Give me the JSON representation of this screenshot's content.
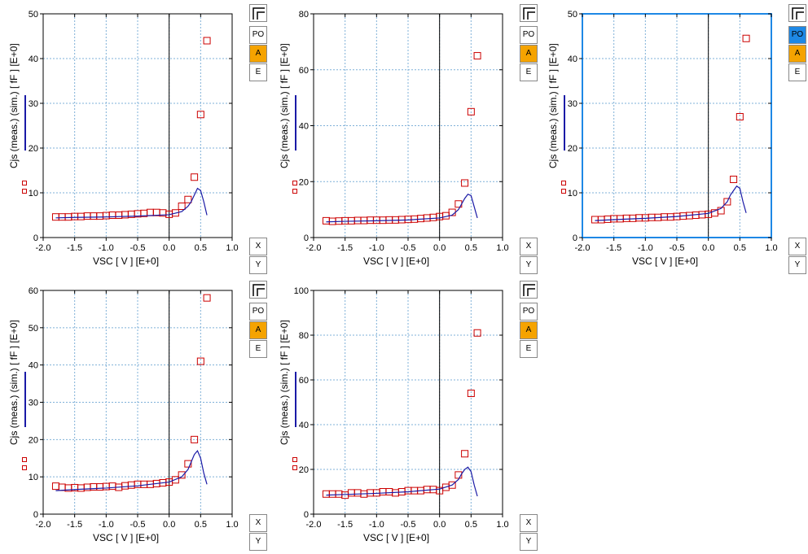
{
  "controls": {
    "scale_buttons": [
      "PO",
      "A",
      "E"
    ],
    "axis_buttons": [
      "X",
      "Y"
    ]
  },
  "colors": {
    "meas": "#cc0000",
    "sim": "#1a1aa6",
    "grid": "#7fb0d8",
    "selected_orange": "#f5a300",
    "selected_blue": "#1e88e5"
  },
  "chart_data": [
    {
      "type": "scatter",
      "ylabel": "Cjs (meas.) (sim.) [ fF ]  [E+0]",
      "xlabel": "VSC [ V ]  [E+0]",
      "xlim": [
        -2.0,
        1.0
      ],
      "ylim": [
        0,
        50
      ],
      "xticks": [
        "-2.0",
        "-1.5",
        "-1.0",
        "-0.5",
        "0.0",
        "0.5",
        "1.0"
      ],
      "yticks": [
        "0",
        "10",
        "20",
        "30",
        "40",
        "50"
      ],
      "grid": true,
      "active": false,
      "series": [
        {
          "kind": "meas",
          "x": [
            -1.8,
            -1.7,
            -1.6,
            -1.5,
            -1.4,
            -1.3,
            -1.2,
            -1.1,
            -1.0,
            -0.9,
            -0.8,
            -0.7,
            -0.6,
            -0.5,
            -0.4,
            -0.3,
            -0.2,
            -0.1,
            0.0,
            0.1,
            0.2,
            0.3,
            0.4,
            0.5,
            0.6
          ],
          "y": [
            4.6,
            4.6,
            4.6,
            4.7,
            4.7,
            4.8,
            4.8,
            4.8,
            4.9,
            5.0,
            5.0,
            5.1,
            5.2,
            5.3,
            5.4,
            5.6,
            5.6,
            5.5,
            5.2,
            5.5,
            7.0,
            8.5,
            13.5,
            27.5,
            44.0
          ]
        },
        {
          "kind": "sim",
          "x": [
            -1.8,
            -1.5,
            -1.0,
            -0.5,
            0.0,
            0.2,
            0.3,
            0.35,
            0.4,
            0.45,
            0.5,
            0.55,
            0.6
          ],
          "y": [
            4.4,
            4.5,
            4.6,
            4.8,
            5.1,
            5.8,
            7.0,
            8.0,
            9.5,
            11.0,
            10.5,
            8.0,
            5.0
          ]
        }
      ]
    },
    {
      "type": "scatter",
      "ylabel": "Cjs (meas.) (sim.) [ fF ]  [E+0]",
      "xlabel": "VSC [ V ]  [E+0]",
      "xlim": [
        -2.0,
        1.0
      ],
      "ylim": [
        0,
        80
      ],
      "xticks": [
        "-2.0",
        "-1.5",
        "-1.0",
        "-0.5",
        "0.0",
        "0.5",
        "1.0"
      ],
      "yticks": [
        "0",
        "20",
        "40",
        "60",
        "80"
      ],
      "grid": true,
      "active": false,
      "series": [
        {
          "kind": "meas",
          "x": [
            -1.8,
            -1.7,
            -1.6,
            -1.5,
            -1.4,
            -1.3,
            -1.2,
            -1.1,
            -1.0,
            -0.9,
            -0.8,
            -0.7,
            -0.6,
            -0.5,
            -0.4,
            -0.3,
            -0.2,
            -0.1,
            0.0,
            0.1,
            0.2,
            0.3,
            0.4,
            0.5,
            0.6
          ],
          "y": [
            6.0,
            5.8,
            5.9,
            6.0,
            6.0,
            6.1,
            6.1,
            6.2,
            6.2,
            6.2,
            6.3,
            6.3,
            6.4,
            6.5,
            6.6,
            6.8,
            7.0,
            7.2,
            7.5,
            7.8,
            9.0,
            12.0,
            19.5,
            45.0,
            65.0
          ]
        },
        {
          "kind": "sim",
          "x": [
            -1.8,
            -1.5,
            -1.0,
            -0.5,
            0.0,
            0.2,
            0.3,
            0.35,
            0.4,
            0.45,
            0.5,
            0.55,
            0.6
          ],
          "y": [
            5.6,
            5.8,
            6.0,
            6.3,
            7.0,
            8.0,
            10.0,
            12.0,
            14.0,
            15.5,
            15.0,
            11.0,
            7.0
          ]
        }
      ]
    },
    {
      "type": "scatter",
      "ylabel": "Cjs (meas.) (sim.) [ fF ]  [E+0]",
      "xlabel": "VSC [ V ]  [E+0]",
      "xlim": [
        -2.0,
        1.0
      ],
      "ylim": [
        0,
        50
      ],
      "xticks": [
        "-2.0",
        "-1.5",
        "-1.0",
        "-0.5",
        "0.0",
        "0.5",
        "1.0"
      ],
      "yticks": [
        "0",
        "10",
        "20",
        "30",
        "40",
        "50"
      ],
      "grid": true,
      "active": true,
      "series": [
        {
          "kind": "meas",
          "x": [
            -1.8,
            -1.7,
            -1.6,
            -1.5,
            -1.4,
            -1.3,
            -1.2,
            -1.1,
            -1.0,
            -0.9,
            -0.8,
            -0.7,
            -0.6,
            -0.5,
            -0.4,
            -0.3,
            -0.2,
            -0.1,
            0.0,
            0.1,
            0.2,
            0.3,
            0.4,
            0.5,
            0.6
          ],
          "y": [
            4.0,
            4.0,
            4.1,
            4.2,
            4.2,
            4.3,
            4.3,
            4.4,
            4.4,
            4.5,
            4.5,
            4.6,
            4.6,
            4.7,
            4.8,
            4.9,
            5.0,
            5.1,
            5.2,
            5.5,
            6.0,
            8.0,
            13.0,
            27.0,
            44.5
          ]
        },
        {
          "kind": "sim",
          "x": [
            -1.8,
            -1.5,
            -1.0,
            -0.5,
            0.0,
            0.2,
            0.3,
            0.35,
            0.4,
            0.45,
            0.5,
            0.55,
            0.6
          ],
          "y": [
            3.8,
            4.0,
            4.3,
            4.7,
            5.4,
            6.5,
            8.0,
            9.5,
            10.5,
            11.5,
            11.0,
            8.0,
            5.5
          ]
        }
      ]
    },
    {
      "type": "scatter",
      "ylabel": "Cjs (meas.) (sim.) [ fF ]  [E+0]",
      "xlabel": "VSC [ V ]  [E+0]",
      "xlim": [
        -2.0,
        1.0
      ],
      "ylim": [
        0,
        60
      ],
      "xticks": [
        "-2.0",
        "-1.5",
        "-1.0",
        "-0.5",
        "0.0",
        "0.5",
        "1.0"
      ],
      "yticks": [
        "0",
        "10",
        "20",
        "30",
        "40",
        "50",
        "60"
      ],
      "grid": true,
      "active": false,
      "series": [
        {
          "kind": "meas",
          "x": [
            -1.8,
            -1.7,
            -1.6,
            -1.5,
            -1.4,
            -1.3,
            -1.2,
            -1.1,
            -1.0,
            -0.9,
            -0.8,
            -0.7,
            -0.6,
            -0.5,
            -0.4,
            -0.3,
            -0.2,
            -0.1,
            0.0,
            0.1,
            0.2,
            0.3,
            0.4,
            0.5,
            0.6
          ],
          "y": [
            7.5,
            7.2,
            7.0,
            7.1,
            7.0,
            7.2,
            7.3,
            7.3,
            7.4,
            7.5,
            7.2,
            7.6,
            7.8,
            8.0,
            8.0,
            8.0,
            8.2,
            8.4,
            8.6,
            9.2,
            10.5,
            13.5,
            20.0,
            41.0,
            58.0
          ]
        },
        {
          "kind": "sim",
          "x": [
            -1.8,
            -1.5,
            -1.0,
            -0.5,
            0.0,
            0.2,
            0.3,
            0.35,
            0.4,
            0.45,
            0.5,
            0.55,
            0.6
          ],
          "y": [
            6.3,
            6.6,
            7.0,
            7.6,
            8.6,
            10.0,
            12.0,
            14.0,
            16.0,
            17.0,
            15.0,
            11.0,
            8.0
          ]
        }
      ]
    },
    {
      "type": "scatter",
      "ylabel": "Cjs (meas.) (sim.) [ fF ]  [E+0]",
      "xlabel": "VSC [ V ]  [E+0]",
      "xlim": [
        -2.0,
        1.0
      ],
      "ylim": [
        0,
        100
      ],
      "xticks": [
        "-2.0",
        "-1.5",
        "-1.0",
        "-0.5",
        "0.0",
        "0.5",
        "1.0"
      ],
      "yticks": [
        "0",
        "20",
        "40",
        "60",
        "80",
        "100"
      ],
      "grid": true,
      "active": false,
      "series": [
        {
          "kind": "meas",
          "x": [
            -1.8,
            -1.7,
            -1.6,
            -1.5,
            -1.4,
            -1.3,
            -1.2,
            -1.1,
            -1.0,
            -0.9,
            -0.8,
            -0.7,
            -0.6,
            -0.5,
            -0.4,
            -0.3,
            -0.2,
            -0.1,
            0.0,
            0.1,
            0.2,
            0.3,
            0.4,
            0.5,
            0.6
          ],
          "y": [
            9.0,
            9.0,
            9.0,
            8.5,
            9.5,
            9.5,
            9.0,
            9.5,
            9.5,
            10.0,
            10.0,
            9.5,
            10.0,
            10.5,
            10.5,
            10.5,
            11.0,
            11.0,
            10.5,
            12.0,
            13.0,
            17.5,
            27.0,
            54.0,
            81.0
          ]
        },
        {
          "kind": "sim",
          "x": [
            -1.8,
            -1.5,
            -1.0,
            -0.5,
            0.0,
            0.2,
            0.3,
            0.35,
            0.4,
            0.45,
            0.5,
            0.55,
            0.6
          ],
          "y": [
            8.5,
            8.8,
            9.3,
            10.0,
            11.2,
            13.0,
            15.5,
            18.0,
            20.0,
            21.0,
            19.0,
            13.0,
            8.0
          ]
        }
      ]
    }
  ]
}
